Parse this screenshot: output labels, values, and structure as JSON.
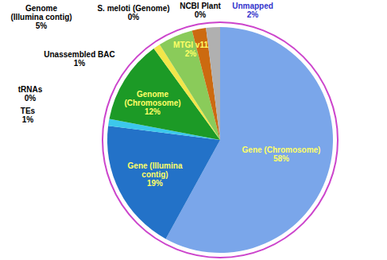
{
  "chart_data": {
    "type": "pie",
    "categories": [
      "Gene (Chromosome)",
      "Gene (Illumina contig)",
      "TEs",
      "tRNAs",
      "Genome (Chromosome)",
      "Unassembled BAC",
      "Genome (Illumina contig)",
      "S. meloti (Genome)",
      "NCBI Plant",
      "MTGI v11",
      "Unmapped"
    ],
    "values": [
      58,
      19,
      1,
      0,
      12,
      1,
      5,
      0,
      0,
      2,
      2
    ],
    "value_labels": [
      "58%",
      "19%",
      "1%",
      "0%",
      "12%",
      "1%",
      "5%",
      "0%",
      "0%",
      "2%",
      "2%"
    ],
    "data_labels": true,
    "colors": [
      "#7aa6ea",
      "#2372c8",
      "#3cc8ec",
      "#9fd3f0",
      "#1c9a26",
      "#f2e64a",
      "#8acb5a",
      "#c6e3a8",
      "#b8b8b8",
      "#cc6a10",
      "#b0b0b0"
    ]
  }
}
